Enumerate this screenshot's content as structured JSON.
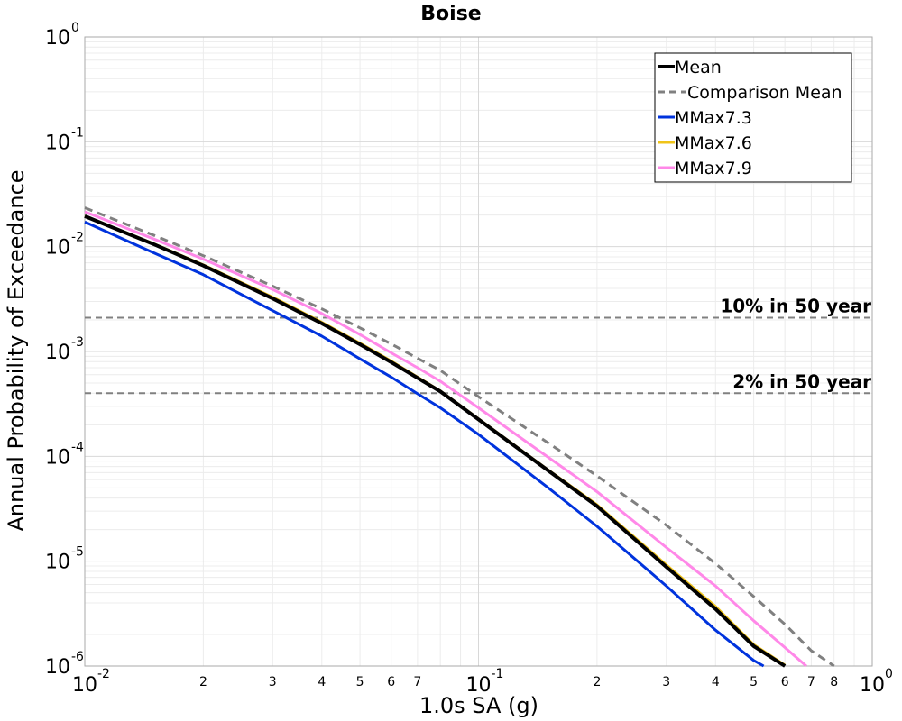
{
  "chart_data": {
    "type": "line",
    "title": "Boise",
    "xlabel": "1.0s SA (g)",
    "ylabel": "Annual Probability of Exceedance",
    "xscale": "log",
    "yscale": "log",
    "xlim": [
      0.01,
      1.0
    ],
    "ylim": [
      1e-06,
      1.0
    ],
    "grid": true,
    "legend_position": "top-right",
    "x_major_ticks": [
      {
        "value": 0.01,
        "base": "10",
        "exp": "-2"
      },
      {
        "value": 0.1,
        "base": "10",
        "exp": "-1"
      },
      {
        "value": 1.0,
        "base": "10",
        "exp": "0"
      }
    ],
    "x_minor_ticks": [
      {
        "value": 0.02,
        "label": "2"
      },
      {
        "value": 0.03,
        "label": "3"
      },
      {
        "value": 0.04,
        "label": "4"
      },
      {
        "value": 0.05,
        "label": "5"
      },
      {
        "value": 0.06,
        "label": "6"
      },
      {
        "value": 0.07,
        "label": "7"
      },
      {
        "value": 0.2,
        "label": "2"
      },
      {
        "value": 0.3,
        "label": "3"
      },
      {
        "value": 0.4,
        "label": "4"
      },
      {
        "value": 0.5,
        "label": "5"
      },
      {
        "value": 0.6,
        "label": "6"
      },
      {
        "value": 0.7,
        "label": "7"
      },
      {
        "value": 0.8,
        "label": "8"
      }
    ],
    "y_major_ticks": [
      {
        "value": 1.0,
        "base": "10",
        "exp": "0"
      },
      {
        "value": 0.1,
        "base": "10",
        "exp": "-1"
      },
      {
        "value": 0.01,
        "base": "10",
        "exp": "-2"
      },
      {
        "value": 0.001,
        "base": "10",
        "exp": "-3"
      },
      {
        "value": 0.0001,
        "base": "10",
        "exp": "-4"
      },
      {
        "value": 1e-05,
        "base": "10",
        "exp": "-5"
      },
      {
        "value": 1e-06,
        "base": "10",
        "exp": "-6"
      }
    ],
    "series": [
      {
        "name": "Mean",
        "color": "#000000",
        "style": "solid",
        "width": 4,
        "x": [
          0.01,
          0.015,
          0.02,
          0.03,
          0.04,
          0.05,
          0.06,
          0.07,
          0.08,
          0.1,
          0.15,
          0.2,
          0.3,
          0.4,
          0.5,
          0.6
        ],
        "y": [
          0.0195,
          0.0105,
          0.0066,
          0.0032,
          0.00185,
          0.00117,
          0.00079,
          0.00056,
          0.000415,
          0.000225,
          7.35e-05,
          3.35e-05,
          8.8e-06,
          3.5e-06,
          1.55e-06,
          1e-06
        ]
      },
      {
        "name": "Comparison Mean",
        "color": "#808080",
        "style": "dashed",
        "width": 3,
        "x": [
          0.01,
          0.015,
          0.02,
          0.03,
          0.04,
          0.05,
          0.06,
          0.07,
          0.08,
          0.1,
          0.15,
          0.2,
          0.3,
          0.4,
          0.5,
          0.6,
          0.7,
          0.8
        ],
        "y": [
          0.0235,
          0.0128,
          0.0082,
          0.0042,
          0.00255,
          0.00168,
          0.00118,
          0.00086,
          0.00066,
          0.00037,
          0.000135,
          6.5e-05,
          2.2e-05,
          9.5e-06,
          4.6e-06,
          2.5e-06,
          1.4e-06,
          1e-06
        ]
      },
      {
        "name": "MMax7.3",
        "color": "#0033dd",
        "style": "solid",
        "width": 3,
        "x": [
          0.01,
          0.015,
          0.02,
          0.03,
          0.04,
          0.05,
          0.06,
          0.07,
          0.08,
          0.1,
          0.15,
          0.2,
          0.3,
          0.4,
          0.5,
          0.53
        ],
        "y": [
          0.0172,
          0.0087,
          0.0054,
          0.00245,
          0.0014,
          0.00085,
          0.00057,
          0.000395,
          0.00029,
          0.000162,
          5.05e-05,
          2.15e-05,
          5.8e-06,
          2.2e-06,
          1.13e-06,
          1e-06
        ]
      },
      {
        "name": "MMax7.6",
        "color": "#f0c419",
        "style": "solid",
        "width": 3,
        "x": [
          0.01,
          0.015,
          0.02,
          0.03,
          0.04,
          0.05,
          0.06,
          0.07,
          0.08,
          0.1,
          0.15,
          0.2,
          0.3,
          0.4,
          0.5,
          0.6
        ],
        "y": [
          0.0196,
          0.0106,
          0.0067,
          0.0033,
          0.0019,
          0.0012,
          0.00081,
          0.00057,
          0.00042,
          0.000228,
          7.45e-05,
          3.45e-05,
          9.2e-06,
          3.7e-06,
          1.6e-06,
          1.02e-06
        ]
      },
      {
        "name": "MMax7.9",
        "color": "#ff88e8",
        "style": "solid",
        "width": 3,
        "x": [
          0.01,
          0.015,
          0.02,
          0.03,
          0.04,
          0.05,
          0.06,
          0.07,
          0.08,
          0.1,
          0.15,
          0.2,
          0.3,
          0.4,
          0.5,
          0.6,
          0.68
        ],
        "y": [
          0.0215,
          0.0118,
          0.0076,
          0.0039,
          0.0023,
          0.00145,
          0.00097,
          0.0007,
          0.00052,
          0.00029,
          9.85e-05,
          4.6e-05,
          1.35e-05,
          5.8e-06,
          2.7e-06,
          1.5e-06,
          1e-06
        ]
      }
    ],
    "reference_lines": [
      {
        "label": "10% in 50 year",
        "y": 0.0021,
        "color": "#808080"
      },
      {
        "label": "2% in 50 year",
        "y": 0.0004,
        "color": "#808080"
      }
    ]
  }
}
